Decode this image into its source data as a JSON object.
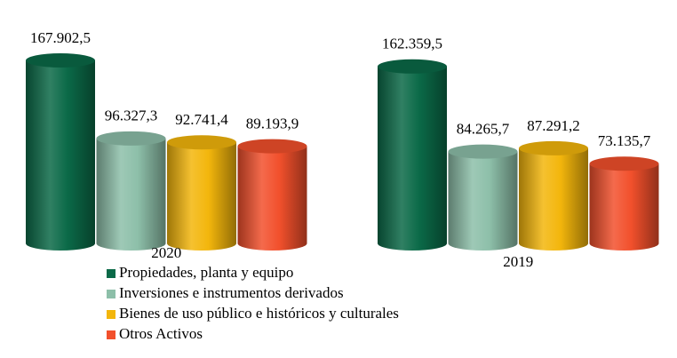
{
  "chart_data": {
    "type": "bar",
    "categories": [
      "2020",
      "2019"
    ],
    "series": [
      {
        "name": "Propiedades, planta y equipo",
        "color": "#0b6a48",
        "values": [
          167902.5,
          162359.5
        ],
        "value_labels": [
          "167.902,5",
          "162.359,5"
        ]
      },
      {
        "name": "Inversiones e instrumentos derivados",
        "color": "#8dbfa9",
        "values": [
          96327.3,
          84265.7
        ],
        "value_labels": [
          "96.327,3",
          "84.265,7"
        ]
      },
      {
        "name": "Bienes de uso público e históricos y culturales",
        "color": "#f3b60c",
        "values": [
          92741.4,
          87291.2
        ],
        "value_labels": [
          "92.741,4",
          "87.291,2"
        ]
      },
      {
        "name": "Otros Activos",
        "color": "#f2502c",
        "values": [
          89193.9,
          73135.7
        ],
        "value_labels": [
          "89.193,9",
          "73.135,7"
        ]
      }
    ],
    "legend": "bottom"
  }
}
